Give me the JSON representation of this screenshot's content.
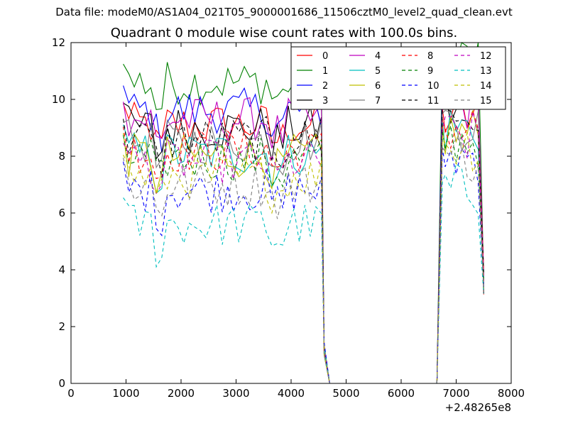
{
  "suptitle": "Data file: modeM0/AS1A04_021T05_9000001686_11506cztM0_level2_quad_clean.evt",
  "chart_data": {
    "type": "line",
    "title": "Quadrant 0 module wise count rates with 100.0s bins.",
    "xlabel": "",
    "ylabel": "",
    "xlim": [
      0,
      8000
    ],
    "ylim": [
      0,
      12
    ],
    "x_ticks": [
      0,
      1000,
      2000,
      3000,
      4000,
      5000,
      6000,
      7000,
      8000
    ],
    "x_tick_labels": [
      "0",
      "1000",
      "2000",
      "3000",
      "4000",
      "5000",
      "6000",
      "7000",
      "8000"
    ],
    "y_ticks": [
      0,
      2,
      4,
      6,
      8,
      10,
      12
    ],
    "y_tick_labels": [
      "0",
      "2",
      "4",
      "6",
      "8",
      "10",
      "12"
    ],
    "x_offset_label": "+2.48265e8",
    "legend_position": "top-right",
    "legend_columns": 4,
    "x_segments": [
      {
        "start": 950,
        "end": 4550,
        "step": 100
      },
      {
        "start": 4600,
        "end": 4700,
        "step": 100
      },
      {
        "start": 6650,
        "end": 6750,
        "step": 100
      },
      {
        "start": 6800,
        "end": 7550,
        "step": 100
      }
    ],
    "series": [
      {
        "name": "0",
        "color": "#ff0000",
        "dashed": false,
        "level": 9.1,
        "level2": 9.4
      },
      {
        "name": "1",
        "color": "#008000",
        "dashed": false,
        "level": 10.6,
        "level2": 11.5
      },
      {
        "name": "2",
        "color": "#0000ff",
        "dashed": false,
        "level": 9.6,
        "level2": 10.4
      },
      {
        "name": "3",
        "color": "#000000",
        "dashed": false,
        "level": 9.0,
        "level2": 9.6
      },
      {
        "name": "4",
        "color": "#bf00bf",
        "dashed": false,
        "level": 9.3,
        "level2": 9.8
      },
      {
        "name": "5",
        "color": "#00bfbf",
        "dashed": false,
        "level": 8.1,
        "level2": 9.0
      },
      {
        "name": "6",
        "color": "#bfbf00",
        "dashed": false,
        "level": 8.0,
        "level2": 8.8
      },
      {
        "name": "7",
        "color": "#7f7f7f",
        "dashed": false,
        "level": 8.5,
        "level2": 9.2
      },
      {
        "name": "8",
        "color": "#ff0000",
        "dashed": true,
        "level": 8.2,
        "level2": 9.0
      },
      {
        "name": "9",
        "color": "#008000",
        "dashed": true,
        "level": 7.9,
        "level2": 8.6
      },
      {
        "name": "10",
        "color": "#0000ff",
        "dashed": true,
        "level": 6.8,
        "level2": 8.0
      },
      {
        "name": "11",
        "color": "#000000",
        "dashed": true,
        "level": 8.6,
        "level2": 9.4
      },
      {
        "name": "12",
        "color": "#bf00bf",
        "dashed": true,
        "level": 7.8,
        "level2": 8.6
      },
      {
        "name": "13",
        "color": "#00bfbf",
        "dashed": true,
        "level": 5.6,
        "level2": 6.8
      },
      {
        "name": "14",
        "color": "#bfbf00",
        "dashed": true,
        "level": 7.3,
        "level2": 8.4
      },
      {
        "name": "15",
        "color": "#7f7f7f",
        "dashed": true,
        "level": 7.0,
        "level2": 8.0
      }
    ]
  }
}
